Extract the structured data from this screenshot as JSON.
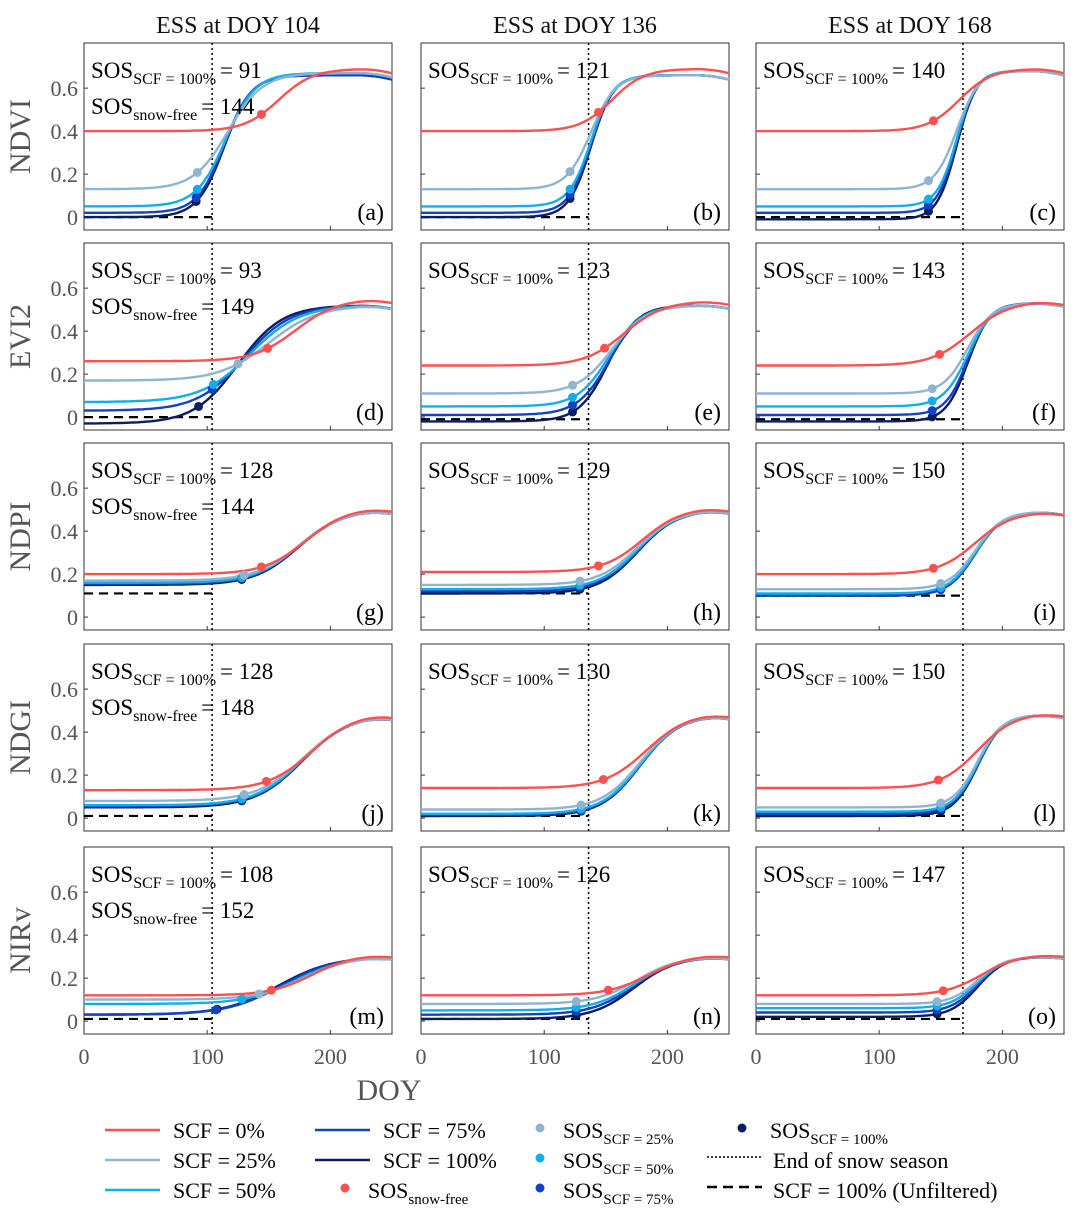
{
  "colors": {
    "scf0": "#FF5050",
    "scf25": "#8FB4D2",
    "scf50": "#12AEEA",
    "scf75": "#1442C4",
    "scf100": "#0B1E5E",
    "unfiltered": "#000000",
    "end_snow": "#000000"
  },
  "chart_data": {
    "type": "line",
    "xlabel": "DOY",
    "xlim": [
      0,
      250
    ],
    "ylim": [
      -0.06,
      0.81
    ],
    "xticks": [
      "0",
      "100",
      "200"
    ],
    "yticks": [
      "0",
      "0.2",
      "0.4",
      "0.6"
    ],
    "column_titles": [
      "ESS at DOY 104",
      "ESS at DOY 136",
      "ESS at DOY 168"
    ],
    "row_labels": [
      "NDVI",
      "EVI2",
      "NDPI",
      "NDGI",
      "NIRv"
    ],
    "series_names": [
      "SCF = 0%",
      "SCF = 25%",
      "SCF = 50%",
      "SCF = 75%",
      "SCF = 100%"
    ],
    "panels": [
      {
        "label": "(a)",
        "end_snow": 104,
        "unfiltered": 0.0,
        "ann": [
          {
            "sub": "SCF = 100%",
            "value": "= 91"
          },
          {
            "sub": "snow-free",
            "value": "= 144"
          }
        ],
        "series": [
          {
            "base": 0.4,
            "peak": 0.69,
            "mid": 158,
            "w": 14,
            "sos": 144
          },
          {
            "base": 0.13,
            "peak": 0.67,
            "mid": 117,
            "w": 14,
            "sos": 92
          },
          {
            "base": 0.05,
            "peak": 0.67,
            "mid": 115,
            "w": 12,
            "sos": 92
          },
          {
            "base": 0.02,
            "peak": 0.66,
            "mid": 114,
            "w": 11,
            "sos": 91
          },
          {
            "base": 0.0,
            "peak": 0.66,
            "mid": 114,
            "w": 11,
            "sos": 91
          }
        ]
      },
      {
        "label": "(b)",
        "end_snow": 136,
        "unfiltered": 0.0,
        "ann": [
          {
            "sub": "SCF = 100%",
            "value": "= 121"
          }
        ],
        "series": [
          {
            "base": 0.4,
            "peak": 0.69,
            "mid": 155,
            "w": 13,
            "sos": 144
          },
          {
            "base": 0.13,
            "peak": 0.66,
            "mid": 138,
            "w": 10,
            "sos": 121
          },
          {
            "base": 0.05,
            "peak": 0.66,
            "mid": 138,
            "w": 9,
            "sos": 121
          },
          {
            "base": 0.02,
            "peak": 0.66,
            "mid": 138,
            "w": 9,
            "sos": 121
          },
          {
            "base": 0.0,
            "peak": 0.66,
            "mid": 138,
            "w": 9,
            "sos": 121
          }
        ]
      },
      {
        "label": "(c)",
        "end_snow": 168,
        "unfiltered": 0.0,
        "ann": [
          {
            "sub": "SCF = 100%",
            "value": "= 140"
          }
        ],
        "series": [
          {
            "base": 0.4,
            "peak": 0.69,
            "mid": 165,
            "w": 13,
            "sos": 144
          },
          {
            "base": 0.13,
            "peak": 0.68,
            "mid": 163,
            "w": 9,
            "sos": 140
          },
          {
            "base": 0.05,
            "peak": 0.68,
            "mid": 163,
            "w": 8,
            "sos": 140
          },
          {
            "base": 0.02,
            "peak": 0.68,
            "mid": 163,
            "w": 8,
            "sos": 140
          },
          {
            "base": -0.01,
            "peak": 0.68,
            "mid": 163,
            "w": 8,
            "sos": 140
          }
        ]
      },
      {
        "label": "(d)",
        "end_snow": 104,
        "unfiltered": 0.0,
        "ann": [
          {
            "sub": "SCF = 100%",
            "value": "= 93"
          },
          {
            "sub": "snow-free",
            "value": "= 149"
          }
        ],
        "series": [
          {
            "base": 0.26,
            "peak": 0.55,
            "mid": 172,
            "w": 17,
            "sos": 149
          },
          {
            "base": 0.17,
            "peak": 0.52,
            "mid": 150,
            "w": 20,
            "sos": 125
          },
          {
            "base": 0.07,
            "peak": 0.52,
            "mid": 135,
            "w": 20,
            "sos": 105
          },
          {
            "base": 0.03,
            "peak": 0.52,
            "mid": 130,
            "w": 19,
            "sos": 104
          },
          {
            "base": -0.03,
            "peak": 0.52,
            "mid": 125,
            "w": 18,
            "sos": 93
          }
        ]
      },
      {
        "label": "(e)",
        "end_snow": 136,
        "unfiltered": -0.01,
        "ann": [
          {
            "sub": "SCF = 100%",
            "value": "= 123"
          }
        ],
        "series": [
          {
            "base": 0.24,
            "peak": 0.54,
            "mid": 165,
            "w": 16,
            "sos": 149
          },
          {
            "base": 0.11,
            "peak": 0.52,
            "mid": 155,
            "w": 14,
            "sos": 123
          },
          {
            "base": 0.05,
            "peak": 0.52,
            "mid": 153,
            "w": 13,
            "sos": 123
          },
          {
            "base": 0.01,
            "peak": 0.52,
            "mid": 153,
            "w": 13,
            "sos": 123
          },
          {
            "base": -0.02,
            "peak": 0.52,
            "mid": 152,
            "w": 12,
            "sos": 123
          }
        ]
      },
      {
        "label": "(f)",
        "end_snow": 168,
        "unfiltered": -0.01,
        "ann": [
          {
            "sub": "SCF = 100%",
            "value": "= 143"
          }
        ],
        "series": [
          {
            "base": 0.24,
            "peak": 0.54,
            "mid": 174,
            "w": 16,
            "sos": 149
          },
          {
            "base": 0.11,
            "peak": 0.53,
            "mid": 172,
            "w": 10,
            "sos": 143
          },
          {
            "base": 0.05,
            "peak": 0.53,
            "mid": 172,
            "w": 10,
            "sos": 143
          },
          {
            "base": 0.01,
            "peak": 0.53,
            "mid": 172,
            "w": 9,
            "sos": 143
          },
          {
            "base": -0.02,
            "peak": 0.53,
            "mid": 172,
            "w": 9,
            "sos": 143
          }
        ]
      },
      {
        "label": "(g)",
        "end_snow": 104,
        "unfiltered": 0.11,
        "ann": [
          {
            "sub": "SCF = 100%",
            "value": "= 128"
          },
          {
            "sub": "snow-free",
            "value": "= 144"
          }
        ],
        "series": [
          {
            "base": 0.2,
            "peak": 0.51,
            "mid": 180,
            "w": 17,
            "sos": 144
          },
          {
            "base": 0.17,
            "peak": 0.5,
            "mid": 175,
            "w": 18,
            "sos": 130
          },
          {
            "base": 0.16,
            "peak": 0.5,
            "mid": 174,
            "w": 18,
            "sos": 128
          },
          {
            "base": 0.155,
            "peak": 0.5,
            "mid": 174,
            "w": 18,
            "sos": 128
          },
          {
            "base": 0.15,
            "peak": 0.5,
            "mid": 174,
            "w": 18,
            "sos": 128
          }
        ]
      },
      {
        "label": "(h)",
        "end_snow": 136,
        "unfiltered": 0.11,
        "ann": [
          {
            "sub": "SCF = 100%",
            "value": "= 129"
          }
        ],
        "series": [
          {
            "base": 0.21,
            "peak": 0.51,
            "mid": 180,
            "w": 16,
            "sos": 144
          },
          {
            "base": 0.15,
            "peak": 0.5,
            "mid": 176,
            "w": 16,
            "sos": 129
          },
          {
            "base": 0.13,
            "peak": 0.5,
            "mid": 176,
            "w": 16,
            "sos": 129
          },
          {
            "base": 0.12,
            "peak": 0.5,
            "mid": 176,
            "w": 16,
            "sos": 129
          },
          {
            "base": 0.11,
            "peak": 0.5,
            "mid": 176,
            "w": 16,
            "sos": 129
          }
        ]
      },
      {
        "label": "(i)",
        "end_snow": 168,
        "unfiltered": 0.1,
        "ann": [
          {
            "sub": "SCF = 100%",
            "value": "= 150"
          }
        ],
        "series": [
          {
            "base": 0.2,
            "peak": 0.49,
            "mid": 178,
            "w": 15,
            "sos": 144
          },
          {
            "base": 0.13,
            "peak": 0.49,
            "mid": 178,
            "w": 11,
            "sos": 150
          },
          {
            "base": 0.11,
            "peak": 0.49,
            "mid": 178,
            "w": 11,
            "sos": 150
          },
          {
            "base": 0.1,
            "peak": 0.49,
            "mid": 178,
            "w": 11,
            "sos": 150
          },
          {
            "base": 0.1,
            "peak": 0.49,
            "mid": 178,
            "w": 11,
            "sos": 150
          }
        ]
      },
      {
        "label": "(j)",
        "end_snow": 104,
        "unfiltered": 0.01,
        "ann": [
          {
            "sub": "SCF = 100%",
            "value": "= 128"
          },
          {
            "sub": "snow-free",
            "value": "= 148"
          }
        ],
        "series": [
          {
            "base": 0.13,
            "peak": 0.49,
            "mid": 185,
            "w": 18,
            "sos": 148
          },
          {
            "base": 0.08,
            "peak": 0.48,
            "mid": 178,
            "w": 19,
            "sos": 130
          },
          {
            "base": 0.06,
            "peak": 0.48,
            "mid": 177,
            "w": 19,
            "sos": 128
          },
          {
            "base": 0.055,
            "peak": 0.48,
            "mid": 177,
            "w": 19,
            "sos": 128
          },
          {
            "base": 0.05,
            "peak": 0.48,
            "mid": 177,
            "w": 19,
            "sos": 128
          }
        ]
      },
      {
        "label": "(k)",
        "end_snow": 136,
        "unfiltered": 0.01,
        "ann": [
          {
            "sub": "SCF = 100%",
            "value": "= 130"
          }
        ],
        "series": [
          {
            "base": 0.14,
            "peak": 0.49,
            "mid": 183,
            "w": 17,
            "sos": 148
          },
          {
            "base": 0.04,
            "peak": 0.48,
            "mid": 178,
            "w": 16,
            "sos": 130
          },
          {
            "base": 0.02,
            "peak": 0.48,
            "mid": 178,
            "w": 16,
            "sos": 130
          },
          {
            "base": 0.015,
            "peak": 0.48,
            "mid": 178,
            "w": 16,
            "sos": 130
          },
          {
            "base": 0.01,
            "peak": 0.48,
            "mid": 178,
            "w": 16,
            "sos": 130
          }
        ]
      },
      {
        "label": "(l)",
        "end_snow": 168,
        "unfiltered": 0.01,
        "ann": [
          {
            "sub": "SCF = 100%",
            "value": "= 150"
          }
        ],
        "series": [
          {
            "base": 0.14,
            "peak": 0.49,
            "mid": 180,
            "w": 15,
            "sos": 148
          },
          {
            "base": 0.05,
            "peak": 0.48,
            "mid": 180,
            "w": 10,
            "sos": 150
          },
          {
            "base": 0.03,
            "peak": 0.48,
            "mid": 180,
            "w": 10,
            "sos": 150
          },
          {
            "base": 0.02,
            "peak": 0.48,
            "mid": 180,
            "w": 10,
            "sos": 150
          },
          {
            "base": 0.01,
            "peak": 0.48,
            "mid": 180,
            "w": 10,
            "sos": 150
          }
        ]
      },
      {
        "label": "(m)",
        "end_snow": 104,
        "unfiltered": 0.01,
        "ann": [
          {
            "sub": "SCF = 100%",
            "value": "= 108"
          },
          {
            "sub": "snow-free",
            "value": "= 152"
          }
        ],
        "series": [
          {
            "base": 0.12,
            "peak": 0.31,
            "mid": 185,
            "w": 17,
            "sos": 152
          },
          {
            "base": 0.1,
            "peak": 0.3,
            "mid": 178,
            "w": 19,
            "sos": 142
          },
          {
            "base": 0.08,
            "peak": 0.3,
            "mid": 172,
            "w": 20,
            "sos": 128
          },
          {
            "base": 0.03,
            "peak": 0.3,
            "mid": 160,
            "w": 22,
            "sos": 107
          },
          {
            "base": 0.03,
            "peak": 0.3,
            "mid": 158,
            "w": 22,
            "sos": 108
          }
        ]
      },
      {
        "label": "(n)",
        "end_snow": 136,
        "unfiltered": 0.01,
        "ann": [
          {
            "sub": "SCF = 100%",
            "value": "= 126"
          }
        ],
        "series": [
          {
            "base": 0.12,
            "peak": 0.31,
            "mid": 185,
            "w": 17,
            "sos": 152
          },
          {
            "base": 0.08,
            "peak": 0.3,
            "mid": 175,
            "w": 17,
            "sos": 126
          },
          {
            "base": 0.05,
            "peak": 0.3,
            "mid": 174,
            "w": 17,
            "sos": 126
          },
          {
            "base": 0.03,
            "peak": 0.3,
            "mid": 173,
            "w": 17,
            "sos": 126
          },
          {
            "base": 0.01,
            "peak": 0.3,
            "mid": 173,
            "w": 17,
            "sos": 126
          }
        ]
      },
      {
        "label": "(o)",
        "end_snow": 168,
        "unfiltered": 0.01,
        "ann": [
          {
            "sub": "SCF = 100%",
            "value": "= 147"
          }
        ],
        "series": [
          {
            "base": 0.12,
            "peak": 0.31,
            "mid": 183,
            "w": 15,
            "sos": 152
          },
          {
            "base": 0.08,
            "peak": 0.3,
            "mid": 180,
            "w": 11,
            "sos": 147
          },
          {
            "base": 0.06,
            "peak": 0.3,
            "mid": 180,
            "w": 11,
            "sos": 147
          },
          {
            "base": 0.04,
            "peak": 0.3,
            "mid": 180,
            "w": 11,
            "sos": 147
          },
          {
            "base": 0.02,
            "peak": 0.3,
            "mid": 180,
            "w": 11,
            "sos": 147
          }
        ]
      }
    ],
    "legend": {
      "placement": "bottom",
      "ann_main": "SOS",
      "items": [
        {
          "kind": "line",
          "color": "scf0",
          "text": "SCF = 0%"
        },
        {
          "kind": "line",
          "color": "scf25",
          "text": "SCF = 25%"
        },
        {
          "kind": "line",
          "color": "scf50",
          "text": "SCF = 50%"
        },
        {
          "kind": "line",
          "color": "scf75",
          "text": "SCF = 75%"
        },
        {
          "kind": "line",
          "color": "scf100",
          "text": "SCF = 100%"
        },
        {
          "kind": "dot",
          "color": "scf0",
          "text": "SOS",
          "sub": "snow-free"
        },
        {
          "kind": "dot",
          "color": "scf25",
          "text": "SOS",
          "sub": "SCF = 25%"
        },
        {
          "kind": "dot",
          "color": "scf50",
          "text": "SOS",
          "sub": "SCF = 50%"
        },
        {
          "kind": "dot",
          "color": "scf75",
          "text": "SOS",
          "sub": "SCF = 75%"
        },
        {
          "kind": "dot",
          "color": "scf100",
          "text": "SOS",
          "sub": "SCF = 100%"
        },
        {
          "kind": "dotted",
          "color": "end_snow",
          "text": "End of snow season"
        },
        {
          "kind": "dashed",
          "color": "unfiltered",
          "text": "SCF = 100% (Unfiltered)"
        }
      ]
    }
  }
}
